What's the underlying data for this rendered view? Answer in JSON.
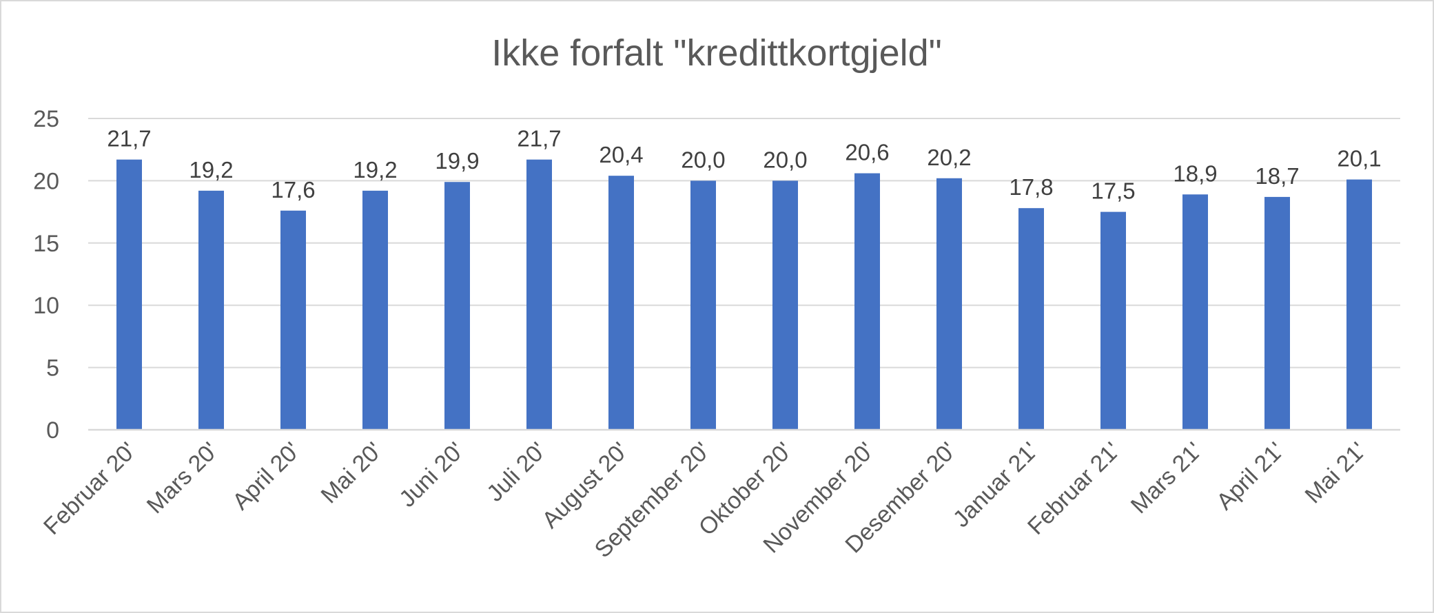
{
  "chart_data": {
    "type": "bar",
    "title": "Ikke forfalt \"kredittkortgjeld\"",
    "xlabel": "",
    "ylabel": "",
    "ylim": [
      0,
      25
    ],
    "yticks": [
      0,
      5,
      10,
      15,
      20,
      25
    ],
    "grid": true,
    "legend": "none",
    "bar_color": "#4472C4",
    "categories": [
      "Februar 20'",
      "Mars 20'",
      "April 20'",
      "Mai 20'",
      "Juni 20'",
      "Juli 20'",
      "August 20'",
      "September 20'",
      "Oktober 20'",
      "November 20'",
      "Desember 20'",
      "Januar 21'",
      "Februar 21'",
      "Mars 21'",
      "April 21'",
      "Mai 21'"
    ],
    "values": [
      21.7,
      19.2,
      17.6,
      19.2,
      19.9,
      21.7,
      20.4,
      20.0,
      20.0,
      20.6,
      20.2,
      17.8,
      17.5,
      18.9,
      18.7,
      20.1
    ],
    "data_labels": [
      "21,7",
      "19,2",
      "17,6",
      "19,2",
      "19,9",
      "21,7",
      "20,4",
      "20,0",
      "20,0",
      "20,6",
      "20,2",
      "17,8",
      "17,5",
      "18,9",
      "18,7",
      "20,1"
    ]
  }
}
